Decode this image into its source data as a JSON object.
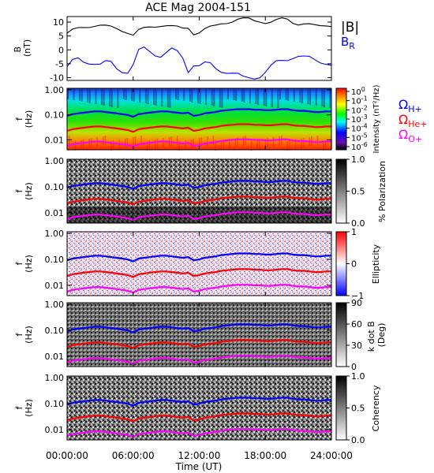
{
  "title": "ACE Mag 2004-151",
  "colors": {
    "btotal": "#000000",
    "br": "#0000ff",
    "h_plus": "#0000ff",
    "he_plus": "#ff0000",
    "o_plus": "#ff00ff"
  },
  "time_axis": {
    "label": "Time (UT)",
    "range_hours": [
      0,
      24
    ],
    "ticks": [
      {
        "hour": 0,
        "label": "00:00:00"
      },
      {
        "hour": 6,
        "label": "06:00:00"
      },
      {
        "hour": 12,
        "label": "12:00:00"
      },
      {
        "hour": 18,
        "label": "18:00:00"
      },
      {
        "hour": 24,
        "label": "24:00:00"
      }
    ]
  },
  "freq_axis": {
    "label_line1": "f",
    "label_line2": "(Hz)",
    "scale": "log",
    "range": [
      0.004,
      1.15
    ],
    "ticks": [
      {
        "value": 1.0,
        "label": "1.00"
      },
      {
        "value": 0.1,
        "label": "0.10"
      },
      {
        "value": 0.01,
        "label": "0.01"
      }
    ]
  },
  "chart_data": [
    {
      "type": "line",
      "panel": "mag",
      "ylabel_line1": "B",
      "ylabel_line2": "(nT)",
      "ylim": [
        -11,
        12
      ],
      "yticks": [
        {
          "value": 10,
          "label": "10"
        },
        {
          "value": 5,
          "label": "5"
        },
        {
          "value": 0,
          "label": "0"
        },
        {
          "value": -5,
          "label": "-5"
        },
        {
          "value": -10,
          "label": "-10"
        }
      ],
      "x_hours": [
        0,
        0.5,
        1,
        1.5,
        2,
        2.5,
        3,
        3.5,
        4,
        4.5,
        5,
        5.5,
        6,
        6.5,
        7,
        7.5,
        8,
        8.5,
        9,
        9.5,
        10,
        10.5,
        11,
        11.5,
        12,
        12.5,
        13,
        13.5,
        14,
        14.5,
        15,
        15.5,
        16,
        16.5,
        17,
        17.5,
        18,
        18.5,
        19,
        19.5,
        20,
        20.5,
        21,
        21.5,
        22,
        22.5,
        23,
        23.5,
        24
      ],
      "series": [
        {
          "name": "|B|",
          "label_display": "|B|",
          "values": [
            6.0,
            7.0,
            7.5,
            8.0,
            8.5,
            9.0,
            9.0,
            8.5,
            8.0,
            7.5,
            7.0,
            6.5,
            5.5,
            7.0,
            7.5,
            8.0,
            8.5,
            9.0,
            9.0,
            8.5,
            8.0,
            7.5,
            8.0,
            6.0,
            6.5,
            7.5,
            8.0,
            8.5,
            9.5,
            10.0,
            10.5,
            11.0,
            11.0,
            11.0,
            10.5,
            10.5,
            10.0,
            10.0,
            10.5,
            11.0,
            11.0,
            10.0,
            9.5,
            9.5,
            9.0,
            8.5,
            8.5,
            9.0,
            9.0
          ]
        },
        {
          "name": "B_R",
          "label_display": "B",
          "label_subscript": "R",
          "values": [
            -7.0,
            -4.5,
            -3.0,
            -3.5,
            -4.0,
            -5.0,
            -6.0,
            -5.0,
            -4.5,
            -6.0,
            -7.0,
            -8.0,
            -6.0,
            -1.0,
            0.5,
            0.0,
            -1.0,
            -2.0,
            -1.5,
            -0.5,
            -1.0,
            -2.5,
            -7.0,
            -5.0,
            -6.0,
            -5.5,
            -5.5,
            -6.5,
            -7.0,
            -7.5,
            -8.5,
            -9.5,
            -10.5,
            -10.0,
            -9.5,
            -9.0,
            -8.0,
            -6.5,
            -5.0,
            -4.0,
            -3.0,
            -2.0,
            -2.0,
            -3.0,
            -3.5,
            -4.0,
            -4.0,
            -4.0,
            -5.0
          ]
        }
      ]
    },
    {
      "type": "heatmap",
      "panel": "intensity",
      "colorbar_label": "Intensity (nT²/Hz)",
      "colorbar_ticks": [
        {
          "label": "10",
          "exponent": "0"
        },
        {
          "label": "10",
          "exponent": "-1"
        },
        {
          "label": "10",
          "exponent": "-2"
        },
        {
          "label": "10",
          "exponent": "-3"
        },
        {
          "label": "10",
          "exponent": "-4"
        },
        {
          "label": "10",
          "exponent": "-5"
        },
        {
          "label": "10",
          "exponent": "-6"
        }
      ],
      "legend": [
        {
          "symbol": "Ω",
          "subscript": "H+",
          "color": "#0000ff"
        },
        {
          "symbol": "Ω",
          "subscript": "He+",
          "color": "#ff0000"
        },
        {
          "symbol": "Ω",
          "subscript": "O+",
          "color": "#ff00ff"
        }
      ]
    },
    {
      "type": "heatmap",
      "panel": "polarization",
      "colorbar_label": "% Polarization",
      "colorbar_ticks": [
        {
          "value": 1.0,
          "label": "1.0"
        },
        {
          "value": 0.5,
          "label": "0.5"
        },
        {
          "value": 0.0,
          "label": "0.0"
        }
      ]
    },
    {
      "type": "heatmap",
      "panel": "ellipticity",
      "colorbar_label": "Ellipticity",
      "colorbar_ticks": [
        {
          "value": 1,
          "label": "1"
        },
        {
          "value": 0,
          "label": "0"
        },
        {
          "value": -1,
          "label": "−1"
        }
      ]
    },
    {
      "type": "heatmap",
      "panel": "kdotb",
      "colorbar_label": "k dot B",
      "colorbar_label2": "(Deg)",
      "colorbar_ticks": [
        {
          "value": 90,
          "label": "90"
        },
        {
          "value": 60,
          "label": "60"
        },
        {
          "value": 30,
          "label": "30"
        },
        {
          "value": 0,
          "label": "0"
        }
      ]
    },
    {
      "type": "heatmap",
      "panel": "coherency",
      "colorbar_label": "Coherency",
      "colorbar_ticks": [
        {
          "value": 1.0,
          "label": "1.0"
        },
        {
          "value": 0.5,
          "label": "0.5"
        },
        {
          "value": 0.0,
          "label": "0.0"
        }
      ]
    }
  ],
  "gyro_lines": {
    "x_hours": [
      0,
      0.5,
      1,
      1.5,
      2,
      2.5,
      3,
      3.5,
      4,
      4.5,
      5,
      5.5,
      6,
      6.5,
      7,
      7.5,
      8,
      8.5,
      9,
      9.5,
      10,
      10.5,
      11,
      11.5,
      12,
      12.5,
      13,
      13.5,
      14,
      14.5,
      15,
      15.5,
      16,
      16.5,
      17,
      17.5,
      18,
      18.5,
      19,
      19.5,
      20,
      20.5,
      21,
      21.5,
      22,
      22.5,
      23,
      23.5,
      24
    ],
    "btotal_nT": [
      6.0,
      7.0,
      7.5,
      8.0,
      8.5,
      9.0,
      9.0,
      8.5,
      8.0,
      7.5,
      7.0,
      6.5,
      5.5,
      7.0,
      7.5,
      8.0,
      8.5,
      9.0,
      9.0,
      8.5,
      8.0,
      7.5,
      8.0,
      6.0,
      6.5,
      7.5,
      8.0,
      8.5,
      9.5,
      10.0,
      10.5,
      11.0,
      11.0,
      11.0,
      10.5,
      10.5,
      10.0,
      10.0,
      10.5,
      11.0,
      11.0,
      10.0,
      9.5,
      9.5,
      9.0,
      8.5,
      8.5,
      9.0,
      9.0
    ],
    "species": [
      {
        "name": "H+",
        "hz_per_nT": 0.01525,
        "color": "#0000ff"
      },
      {
        "name": "He+",
        "hz_per_nT": 0.00381,
        "color": "#ff0000"
      },
      {
        "name": "O+",
        "hz_per_nT": 0.00095,
        "color": "#ff00ff"
      }
    ]
  }
}
